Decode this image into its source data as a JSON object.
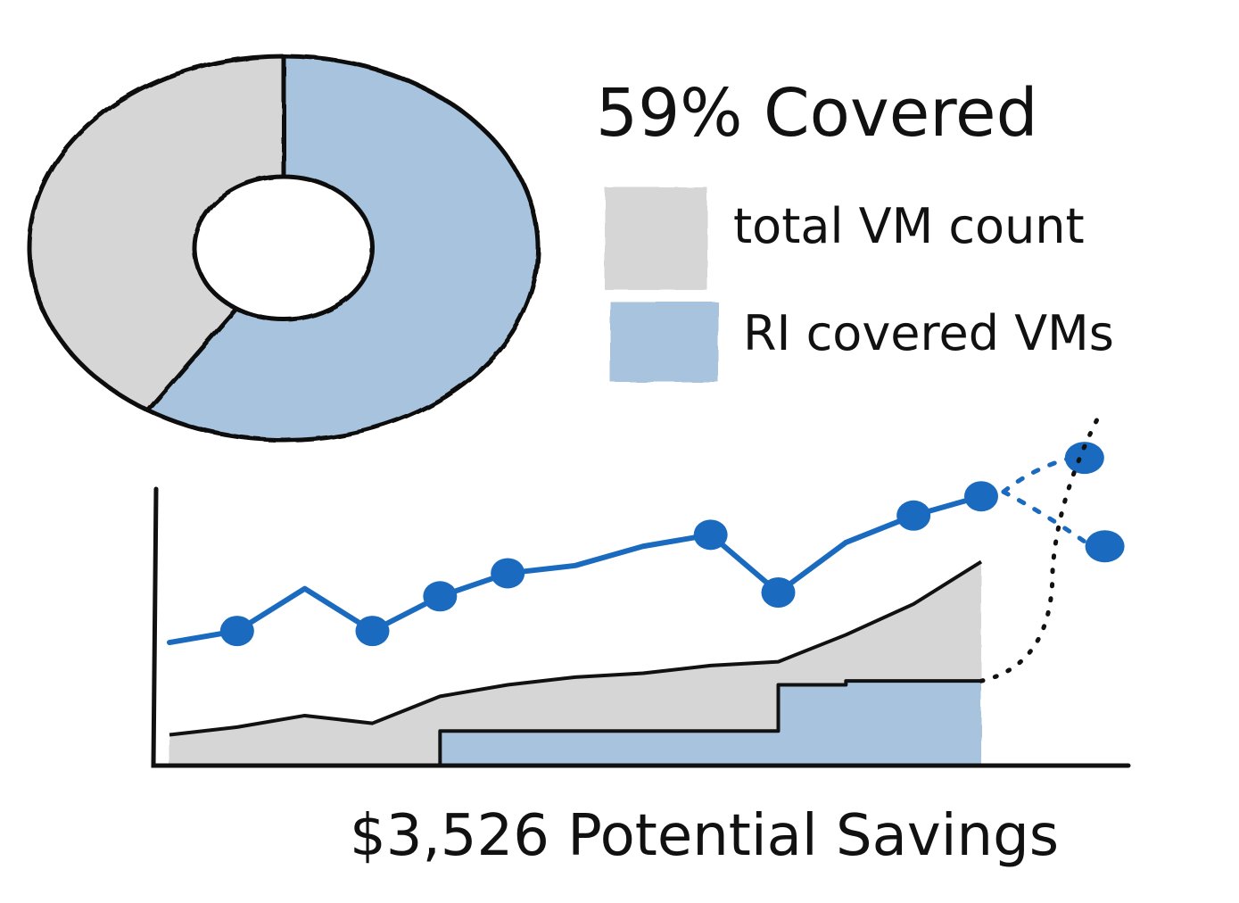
{
  "headline": {
    "coverage_text": "59% Covered",
    "savings_text": "$3,526 Potential Savings"
  },
  "legend": [
    {
      "label": "total VM count",
      "color": "#d6d6d6"
    },
    {
      "label": "RI covered VMs",
      "color": "#a7c3de"
    }
  ],
  "colors": {
    "total": "#d6d6d6",
    "covered": "#a7c3de",
    "trend": "#1a6bbf",
    "ink": "#111111"
  },
  "chart_data": [
    {
      "type": "pie",
      "variant": "donut",
      "slices": [
        {
          "name": "RI covered VMs",
          "value": 59
        },
        {
          "name": "total VM count",
          "value": 41
        }
      ]
    },
    {
      "type": "area",
      "axes": "unlabeled",
      "x": [
        0,
        1,
        2,
        3,
        4,
        5,
        6,
        7,
        8,
        9,
        10,
        11,
        12
      ],
      "series": [
        {
          "name": "total VM count",
          "values": [
            8,
            10,
            13,
            11,
            18,
            21,
            23,
            24,
            26,
            27,
            34,
            42,
            53
          ]
        },
        {
          "name": "RI covered VMs",
          "values": [
            0,
            0,
            0,
            0,
            9,
            9,
            9,
            9,
            9,
            21,
            22,
            22,
            22
          ]
        }
      ],
      "trend": {
        "values": [
          32,
          35,
          46,
          35,
          44,
          50,
          52,
          57,
          60,
          45,
          58,
          65,
          70
        ],
        "marker_x": [
          1,
          3,
          4,
          5,
          8,
          9,
          11,
          12
        ],
        "projected": [
          {
            "x": 13,
            "value": 80
          },
          {
            "x": 13.3,
            "value": 57
          }
        ]
      }
    }
  ]
}
